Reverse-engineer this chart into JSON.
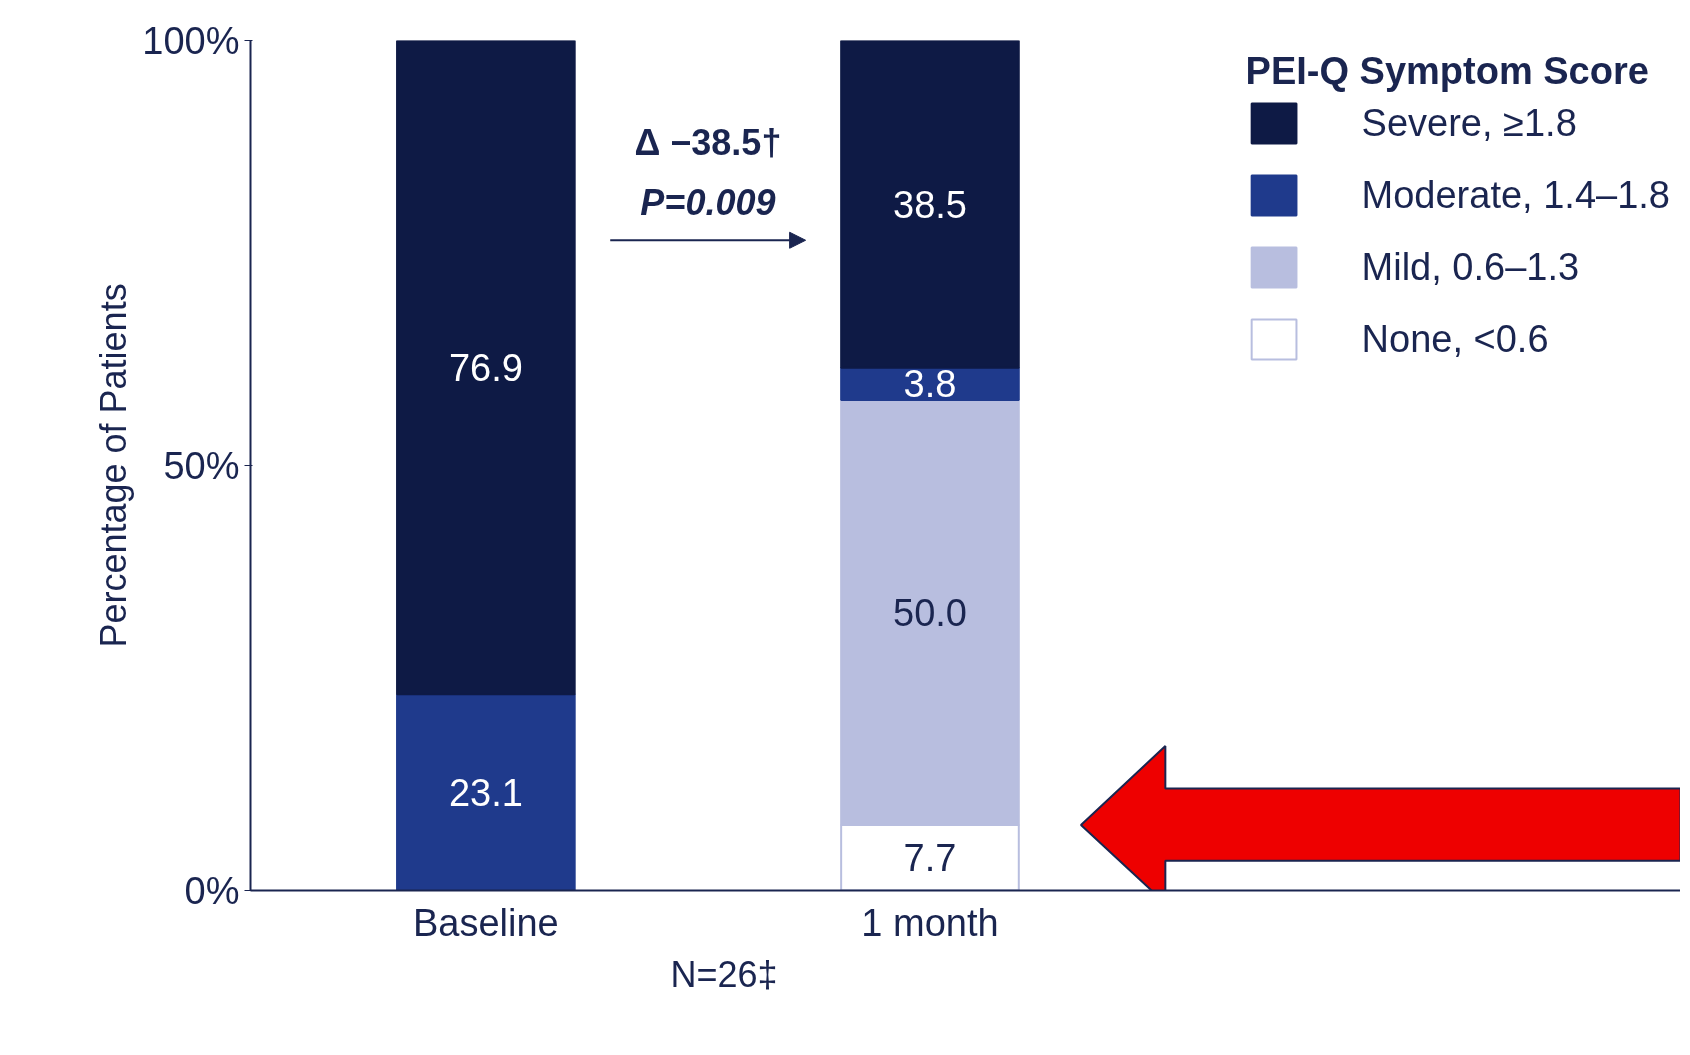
{
  "chart_data": {
    "type": "bar",
    "stacked": true,
    "categories": [
      "Baseline",
      "1 month"
    ],
    "series": [
      {
        "name": "None, <0.6",
        "color": "#ffffff",
        "values": [
          0,
          7.7
        ],
        "value_labels": [
          null,
          "7.7"
        ]
      },
      {
        "name": "Mild, 0.6–1.3",
        "color": "#b8bedf",
        "values": [
          0,
          50.0
        ],
        "value_labels": [
          null,
          "50.0"
        ]
      },
      {
        "name": "Moderate, 1.4–1.8",
        "color": "#1f3a8c",
        "values": [
          23.1,
          3.8
        ],
        "value_labels": [
          "23.1",
          "3.8"
        ]
      },
      {
        "name": "Severe, ≥1.8",
        "color": "#0e1a45",
        "values": [
          76.9,
          38.5
        ],
        "value_labels": [
          "76.9",
          "38.5"
        ]
      }
    ],
    "ylabel": "Percentage of Patients",
    "legend_title": "PEI-Q Symptom Score",
    "legend": "top right",
    "grid": false,
    "ylim": [
      0,
      100
    ],
    "yticks": [
      {
        "value": 0,
        "label": "0%"
      },
      {
        "value": 50,
        "label": "50%"
      },
      {
        "value": 100,
        "label": "100%"
      }
    ],
    "annotations": [
      "Δ −38.5†",
      "P=0.009",
      "N=26‡"
    ]
  }
}
